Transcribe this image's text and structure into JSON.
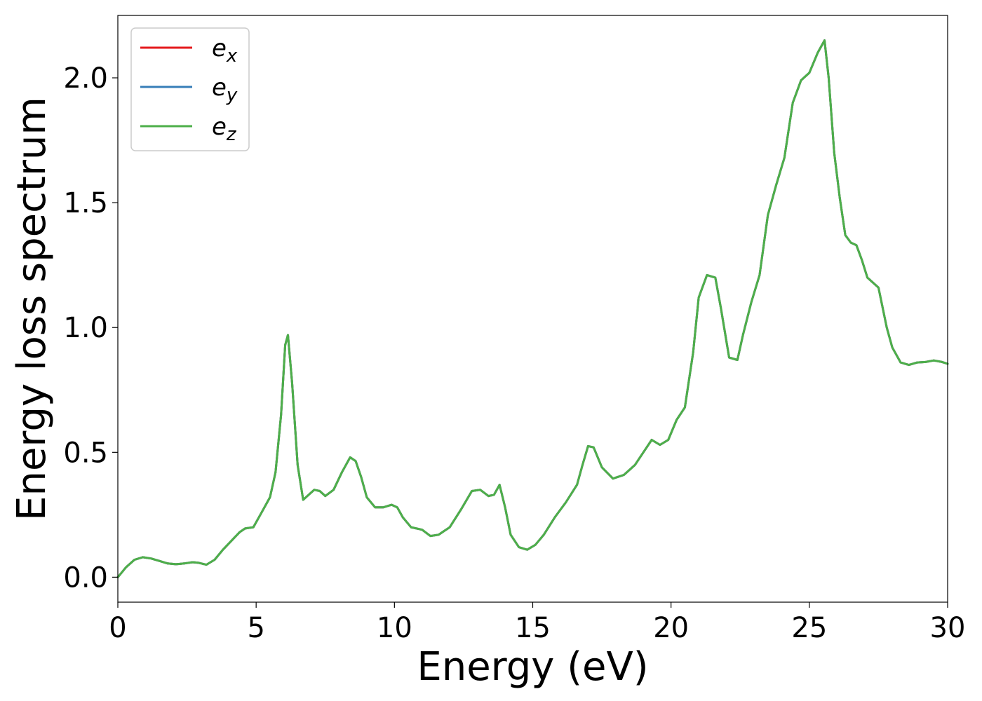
{
  "chart_data": {
    "type": "line",
    "title": "",
    "xlabel": "Energy (eV)",
    "ylabel": "Energy loss spectrum",
    "xlim": [
      0,
      30
    ],
    "ylim": [
      -0.1,
      2.25
    ],
    "xticks": [
      0,
      5,
      10,
      15,
      20,
      25,
      30
    ],
    "xtick_labels": [
      "0",
      "5",
      "10",
      "15",
      "20",
      "25",
      "30"
    ],
    "yticks": [
      0.0,
      0.5,
      1.0,
      1.5,
      2.0
    ],
    "ytick_labels": [
      "0.0",
      "0.5",
      "1.0",
      "1.5",
      "2.0"
    ],
    "grid": false,
    "legend_position": "top-left",
    "x": [
      0,
      0.3,
      0.6,
      0.9,
      1.2,
      1.5,
      1.8,
      2.1,
      2.4,
      2.7,
      2.9,
      3.2,
      3.5,
      3.8,
      4.1,
      4.4,
      4.6,
      4.9,
      5.2,
      5.5,
      5.7,
      5.9,
      6.05,
      6.15,
      6.3,
      6.5,
      6.7,
      6.9,
      7.1,
      7.3,
      7.5,
      7.8,
      8.1,
      8.4,
      8.6,
      8.8,
      9.0,
      9.3,
      9.6,
      9.9,
      10.1,
      10.3,
      10.6,
      11.0,
      11.3,
      11.6,
      12.0,
      12.4,
      12.8,
      13.1,
      13.4,
      13.6,
      13.8,
      14.0,
      14.2,
      14.5,
      14.8,
      15.1,
      15.4,
      15.8,
      16.2,
      16.6,
      16.8,
      17.0,
      17.2,
      17.5,
      17.9,
      18.3,
      18.7,
      19.0,
      19.3,
      19.6,
      19.9,
      20.2,
      20.5,
      20.8,
      21.0,
      21.3,
      21.6,
      21.8,
      22.1,
      22.4,
      22.6,
      22.9,
      23.2,
      23.5,
      23.8,
      24.1,
      24.4,
      24.7,
      25.0,
      25.3,
      25.55,
      25.7,
      25.9,
      26.1,
      26.3,
      26.5,
      26.7,
      26.9,
      27.1,
      27.3,
      27.5,
      27.8,
      28.0,
      28.3,
      28.6,
      28.9,
      29.2,
      29.5,
      29.8,
      30.0
    ],
    "series": [
      {
        "name": "e_x",
        "color": "#e41a1c",
        "y": [
          0.0,
          0.04,
          0.07,
          0.08,
          0.075,
          0.065,
          0.055,
          0.052,
          0.055,
          0.06,
          0.058,
          0.05,
          0.07,
          0.11,
          0.145,
          0.18,
          0.195,
          0.2,
          0.26,
          0.32,
          0.42,
          0.65,
          0.93,
          0.97,
          0.78,
          0.45,
          0.31,
          0.33,
          0.35,
          0.345,
          0.325,
          0.35,
          0.42,
          0.48,
          0.465,
          0.4,
          0.32,
          0.28,
          0.28,
          0.29,
          0.28,
          0.24,
          0.2,
          0.19,
          0.165,
          0.17,
          0.2,
          0.27,
          0.345,
          0.35,
          0.325,
          0.33,
          0.37,
          0.28,
          0.17,
          0.12,
          0.11,
          0.13,
          0.17,
          0.24,
          0.3,
          0.37,
          0.45,
          0.525,
          0.52,
          0.44,
          0.395,
          0.41,
          0.45,
          0.5,
          0.55,
          0.53,
          0.55,
          0.63,
          0.68,
          0.9,
          1.12,
          1.21,
          1.2,
          1.08,
          0.88,
          0.87,
          0.97,
          1.1,
          1.21,
          1.45,
          1.57,
          1.68,
          1.9,
          1.99,
          2.02,
          2.1,
          2.15,
          2.0,
          1.7,
          1.52,
          1.37,
          1.34,
          1.33,
          1.27,
          1.2,
          1.18,
          1.16,
          1.0,
          0.92,
          0.86,
          0.85,
          0.86,
          0.862,
          0.868,
          0.862,
          0.855
        ]
      },
      {
        "name": "e_y",
        "color": "#377eb8",
        "y": [
          0.0,
          0.04,
          0.07,
          0.08,
          0.075,
          0.065,
          0.055,
          0.052,
          0.055,
          0.06,
          0.058,
          0.05,
          0.07,
          0.11,
          0.145,
          0.18,
          0.195,
          0.2,
          0.26,
          0.32,
          0.42,
          0.65,
          0.93,
          0.97,
          0.78,
          0.45,
          0.31,
          0.33,
          0.35,
          0.345,
          0.325,
          0.35,
          0.42,
          0.48,
          0.465,
          0.4,
          0.32,
          0.28,
          0.28,
          0.29,
          0.28,
          0.24,
          0.2,
          0.19,
          0.165,
          0.17,
          0.2,
          0.27,
          0.345,
          0.35,
          0.325,
          0.33,
          0.37,
          0.28,
          0.17,
          0.12,
          0.11,
          0.13,
          0.17,
          0.24,
          0.3,
          0.37,
          0.45,
          0.525,
          0.52,
          0.44,
          0.395,
          0.41,
          0.45,
          0.5,
          0.55,
          0.53,
          0.55,
          0.63,
          0.68,
          0.9,
          1.12,
          1.21,
          1.2,
          1.08,
          0.88,
          0.87,
          0.97,
          1.1,
          1.21,
          1.45,
          1.57,
          1.68,
          1.9,
          1.99,
          2.02,
          2.1,
          2.15,
          2.0,
          1.7,
          1.52,
          1.37,
          1.34,
          1.33,
          1.27,
          1.2,
          1.18,
          1.16,
          1.0,
          0.92,
          0.86,
          0.85,
          0.86,
          0.862,
          0.868,
          0.862,
          0.855
        ]
      },
      {
        "name": "e_z",
        "color": "#4daf4a",
        "y": [
          0.0,
          0.04,
          0.07,
          0.08,
          0.075,
          0.065,
          0.055,
          0.052,
          0.055,
          0.06,
          0.058,
          0.05,
          0.07,
          0.11,
          0.145,
          0.18,
          0.195,
          0.2,
          0.26,
          0.32,
          0.42,
          0.65,
          0.93,
          0.97,
          0.78,
          0.45,
          0.31,
          0.33,
          0.35,
          0.345,
          0.325,
          0.35,
          0.42,
          0.48,
          0.465,
          0.4,
          0.32,
          0.28,
          0.28,
          0.29,
          0.28,
          0.24,
          0.2,
          0.19,
          0.165,
          0.17,
          0.2,
          0.27,
          0.345,
          0.35,
          0.325,
          0.33,
          0.37,
          0.28,
          0.17,
          0.12,
          0.11,
          0.13,
          0.17,
          0.24,
          0.3,
          0.37,
          0.45,
          0.525,
          0.52,
          0.44,
          0.395,
          0.41,
          0.45,
          0.5,
          0.55,
          0.53,
          0.55,
          0.63,
          0.68,
          0.9,
          1.12,
          1.21,
          1.2,
          1.08,
          0.88,
          0.87,
          0.97,
          1.1,
          1.21,
          1.45,
          1.57,
          1.68,
          1.9,
          1.99,
          2.02,
          2.1,
          2.15,
          2.0,
          1.7,
          1.52,
          1.37,
          1.34,
          1.33,
          1.27,
          1.2,
          1.18,
          1.16,
          1.0,
          0.92,
          0.86,
          0.85,
          0.86,
          0.862,
          0.868,
          0.862,
          0.855
        ]
      }
    ],
    "legend": [
      {
        "base": "e",
        "sub": "x",
        "color": "#e41a1c"
      },
      {
        "base": "e",
        "sub": "y",
        "color": "#377eb8"
      },
      {
        "base": "e",
        "sub": "z",
        "color": "#4daf4a"
      }
    ]
  }
}
